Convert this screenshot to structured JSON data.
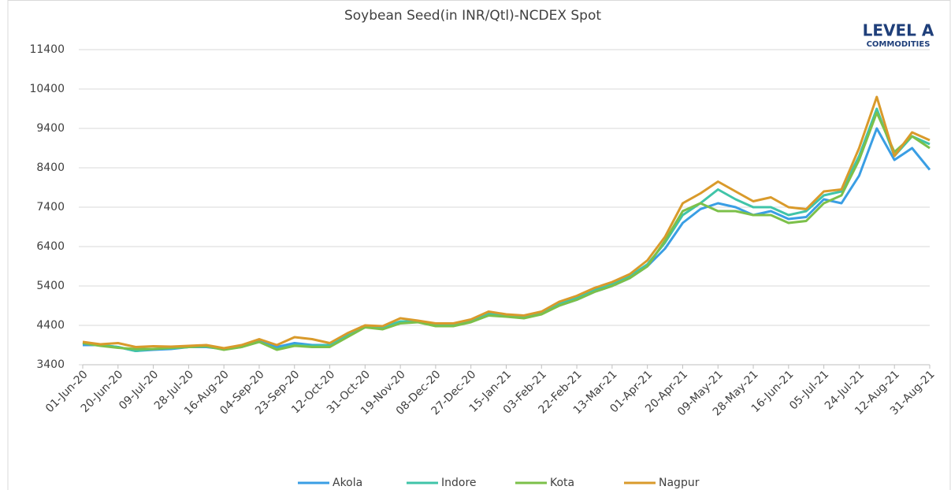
{
  "chart_data": {
    "type": "line",
    "title": "Soybean  Seed(in INR/Qtl)-NCDEX Spot",
    "logo": {
      "name": "LEVEL A",
      "subtitle": "COMMODITIES"
    },
    "categories": [
      "01-Jun-20",
      null,
      "20-Jun-20",
      null,
      "09-Jul-20",
      null,
      "28-Jul-20",
      null,
      "16-Aug-20",
      null,
      "04-Sep-20",
      null,
      "23-Sep-20",
      null,
      "12-Oct-20",
      null,
      "31-Oct-20",
      null,
      "19-Nov-20",
      null,
      "08-Dec-20",
      null,
      "27-Dec-20",
      null,
      "15-Jan-21",
      null,
      "03-Feb-21",
      null,
      "22-Feb-21",
      null,
      "13-Mar-21",
      null,
      "01-Apr-21",
      null,
      "20-Apr-21",
      null,
      "09-May-21",
      null,
      "28-May-21",
      null,
      "16-Jun-21",
      null,
      "05-Jul-21",
      null,
      "24-Jul-21",
      null,
      "12-Aug-21",
      null,
      "31-Aug-21"
    ],
    "series": [
      {
        "name": "Akola",
        "color": "#3a9ee4",
        "values": [
          3900,
          3900,
          3850,
          3750,
          3780,
          3800,
          3850,
          3850,
          3800,
          3850,
          4000,
          3850,
          3950,
          3900,
          3900,
          4150,
          4350,
          4350,
          4500,
          4500,
          4400,
          4400,
          4500,
          4650,
          4650,
          4600,
          4700,
          4900,
          5050,
          5250,
          5400,
          5600,
          5900,
          6350,
          7000,
          7350,
          7500,
          7400,
          7200,
          7300,
          7100,
          7150,
          7600,
          7500,
          8200,
          9400,
          8600,
          8900,
          8350
        ]
      },
      {
        "name": "Indore",
        "color": "#40c4a8",
        "values": [
          3950,
          3900,
          3850,
          3750,
          3800,
          3820,
          3850,
          3870,
          3800,
          3870,
          3980,
          3800,
          3900,
          3880,
          3900,
          4150,
          4350,
          4350,
          4500,
          4500,
          4420,
          4420,
          4520,
          4700,
          4650,
          4620,
          4720,
          4950,
          5100,
          5300,
          5450,
          5650,
          5950,
          6500,
          7200,
          7500,
          7850,
          7600,
          7400,
          7400,
          7200,
          7300,
          7700,
          7800,
          8700,
          9900,
          8700,
          9200,
          9000
        ]
      },
      {
        "name": "Kota",
        "color": "#7cc04a",
        "values": [
          3950,
          3880,
          3830,
          3800,
          3800,
          3830,
          3850,
          3870,
          3780,
          3850,
          3980,
          3780,
          3880,
          3850,
          3850,
          4100,
          4350,
          4300,
          4450,
          4480,
          4380,
          4380,
          4480,
          4650,
          4620,
          4580,
          4680,
          4900,
          5050,
          5250,
          5400,
          5600,
          5900,
          6550,
          7300,
          7500,
          7300,
          7300,
          7200,
          7200,
          7000,
          7050,
          7500,
          7700,
          8600,
          9800,
          8800,
          9200,
          8900
        ]
      },
      {
        "name": "Nagpur",
        "color": "#d99a2b",
        "values": [
          3980,
          3920,
          3950,
          3850,
          3870,
          3860,
          3880,
          3900,
          3820,
          3900,
          4050,
          3900,
          4100,
          4050,
          3950,
          4200,
          4400,
          4380,
          4580,
          4520,
          4450,
          4450,
          4550,
          4750,
          4680,
          4650,
          4750,
          5000,
          5150,
          5350,
          5500,
          5700,
          6050,
          6650,
          7500,
          7750,
          8050,
          7800,
          7550,
          7650,
          7400,
          7350,
          7800,
          7850,
          8900,
          10200,
          8700,
          9300,
          9100
        ]
      }
    ],
    "ylim": [
      3400,
      11400
    ],
    "yticks": [
      3400,
      4400,
      5400,
      6400,
      7400,
      8400,
      9400,
      10400,
      11400
    ],
    "grid": true,
    "legend": "bottom"
  }
}
